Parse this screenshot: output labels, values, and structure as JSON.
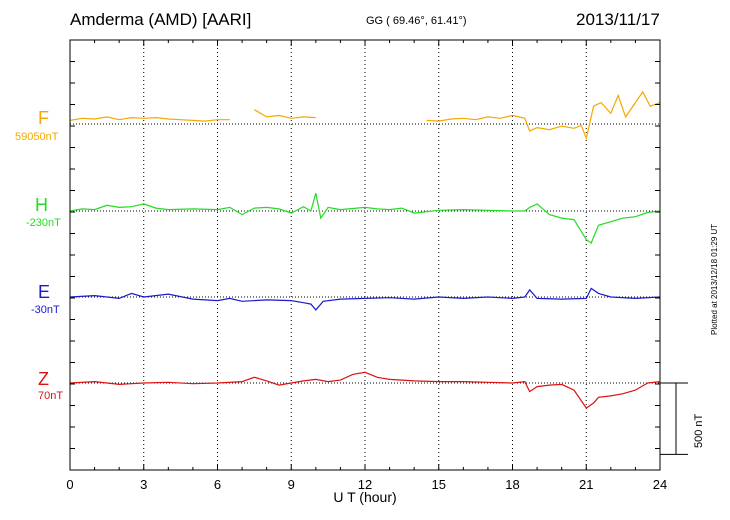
{
  "header": {
    "station": "Amderma (AMD)  [AARI]",
    "coords": "GG ( 69.46°,  61.41°)",
    "date": "2013/11/17"
  },
  "footer": {
    "xlabel": "U T (hour)",
    "plotted": "Plotted at 2013/12/18 01:29 UT",
    "scale": "500 nT"
  },
  "colors": {
    "F": "#f5a800",
    "H": "#22dd22",
    "E": "#1a1acc",
    "Z": "#dd1111",
    "axis": "#000000"
  },
  "chart_data": {
    "type": "line",
    "x_range": [
      0,
      24
    ],
    "x_ticks": [
      0,
      3,
      6,
      9,
      12,
      15,
      18,
      21,
      24
    ],
    "xlabel": "U T (hour)",
    "scale_bar_nT": 500,
    "series": [
      {
        "name": "F",
        "baseline_label": "59050nT",
        "color": "#f5a800",
        "x": [
          0,
          0.5,
          1,
          1.5,
          2,
          2.5,
          3,
          3.5,
          4,
          4.5,
          5,
          5.5,
          6,
          6.5,
          7.2,
          7.5,
          8,
          8.5,
          9,
          9.5,
          10,
          14,
          14.5,
          15,
          15.5,
          16,
          16.5,
          17,
          17.5,
          18,
          18.5,
          18.7,
          19,
          19.5,
          20,
          20.5,
          20.8,
          21,
          21.3,
          21.6,
          22,
          22.3,
          22.6,
          23,
          23.3,
          23.6,
          24
        ],
        "y": [
          5,
          8,
          7,
          10,
          6,
          9,
          8,
          9,
          7,
          6,
          5,
          4,
          6,
          6,
          null,
          20,
          10,
          12,
          8,
          10,
          9,
          null,
          5,
          4,
          7,
          8,
          6,
          10,
          8,
          12,
          8,
          -10,
          -5,
          -8,
          -3,
          -6,
          -2,
          -20,
          25,
          30,
          15,
          40,
          10,
          30,
          45,
          25,
          30
        ]
      },
      {
        "name": "H",
        "baseline_label": "-230nT",
        "color": "#22dd22",
        "x": [
          0,
          0.5,
          1,
          1.5,
          2,
          2.5,
          3,
          3.5,
          4,
          5,
          6,
          6.5,
          7,
          7.5,
          8,
          8.5,
          9,
          9.5,
          9.8,
          10,
          10.2,
          10.5,
          11,
          12,
          12.5,
          13,
          13.5,
          14,
          15,
          16,
          17,
          18,
          18.5,
          18.7,
          19,
          19.5,
          20,
          20.5,
          21,
          21.2,
          21.5,
          22,
          22.5,
          23,
          23.5,
          24
        ],
        "y": [
          0,
          3,
          2,
          8,
          5,
          6,
          10,
          4,
          2,
          3,
          2,
          5,
          -5,
          4,
          5,
          3,
          -3,
          6,
          0,
          25,
          -10,
          5,
          2,
          5,
          3,
          2,
          4,
          -3,
          1,
          2,
          1,
          0,
          0,
          5,
          10,
          -5,
          -10,
          -12,
          -40,
          -45,
          -20,
          -15,
          -10,
          -8,
          -2,
          0
        ]
      },
      {
        "name": "E",
        "baseline_label": "-30nT",
        "color": "#1a1acc",
        "x": [
          0,
          1,
          2,
          2.5,
          3,
          4,
          5,
          6,
          6.5,
          7,
          8,
          9,
          9.5,
          9.8,
          10,
          10.3,
          11,
          12,
          13,
          14,
          15,
          16,
          17,
          18,
          18.5,
          18.7,
          19,
          20,
          21,
          21.2,
          21.5,
          22,
          23,
          24
        ],
        "y": [
          0,
          2,
          -2,
          5,
          0,
          4,
          -3,
          -5,
          -2,
          -6,
          -4,
          -5,
          -8,
          -10,
          -18,
          -6,
          -3,
          -2,
          -1,
          -3,
          0,
          -2,
          0,
          -2,
          0,
          10,
          -2,
          -3,
          -2,
          12,
          5,
          0,
          -2,
          0
        ]
      },
      {
        "name": "Z",
        "baseline_label": "70nT",
        "color": "#dd1111",
        "x": [
          0,
          1,
          2,
          3,
          4,
          5,
          6,
          7,
          7.5,
          8,
          8.5,
          9,
          9.5,
          10,
          10.5,
          11,
          11.5,
          12,
          12.5,
          13,
          14,
          15,
          16,
          17,
          18,
          18.5,
          18.7,
          19,
          19.5,
          20,
          20.5,
          21,
          21.3,
          21.5,
          22,
          22.5,
          23,
          23.5,
          24
        ],
        "y": [
          0,
          2,
          -2,
          0,
          1,
          -1,
          0,
          2,
          8,
          3,
          -3,
          0,
          3,
          5,
          2,
          4,
          12,
          15,
          8,
          5,
          3,
          2,
          2,
          1,
          0,
          2,
          -12,
          -5,
          -3,
          -2,
          -10,
          -35,
          -28,
          -20,
          -18,
          -15,
          -10,
          0,
          2
        ]
      }
    ]
  }
}
